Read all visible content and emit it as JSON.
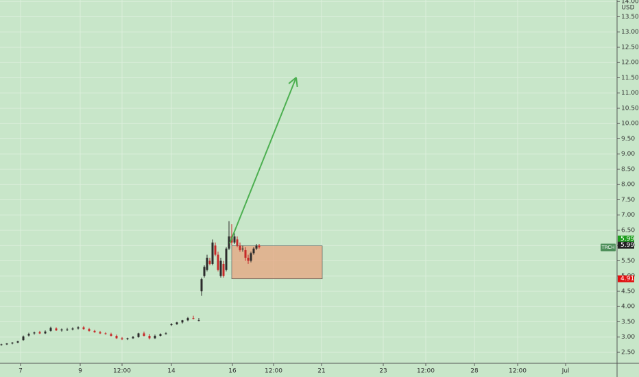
{
  "chart_data": {
    "type": "candlestick",
    "currency": "USD",
    "symbol": "TRCH",
    "xlim": [
      0,
      225
    ],
    "ylim": [
      2.14,
      14.05
    ],
    "grid": true,
    "up_color": "#2b2b2b",
    "down_color": "#c62828",
    "xticks": [
      {
        "value": 7.5,
        "label": "7"
      },
      {
        "value": 29.25,
        "label": "9"
      },
      {
        "value": 44.5,
        "label": "12:00"
      },
      {
        "value": 62.5,
        "label": "14"
      },
      {
        "value": 84.75,
        "label": "16"
      },
      {
        "value": 99.75,
        "label": "12:00"
      },
      {
        "value": 117.25,
        "label": "21"
      },
      {
        "value": 139.75,
        "label": "23"
      },
      {
        "value": 155.25,
        "label": "12:00"
      },
      {
        "value": 173,
        "label": "28"
      },
      {
        "value": 188.75,
        "label": "12:00"
      },
      {
        "value": 206.25,
        "label": "Jul"
      }
    ],
    "yticks": [
      {
        "value": 2.5,
        "label": "2.50"
      },
      {
        "value": 3,
        "label": "3.00"
      },
      {
        "value": 3.5,
        "label": "3.50"
      },
      {
        "value": 4,
        "label": "4.00"
      },
      {
        "value": 4.5,
        "label": "4.50"
      },
      {
        "value": 5,
        "label": "5.00"
      },
      {
        "value": 5.5,
        "label": "5.50"
      },
      {
        "value": 6,
        "label": "6.00"
      },
      {
        "value": 6.5,
        "label": "6.50"
      },
      {
        "value": 7,
        "label": "7.00"
      },
      {
        "value": 7.5,
        "label": "7.50"
      },
      {
        "value": 8,
        "label": "8.00"
      },
      {
        "value": 8.5,
        "label": "8.50"
      },
      {
        "value": 9,
        "label": "9.00"
      },
      {
        "value": 9.5,
        "label": "9.50"
      },
      {
        "value": 10,
        "label": "10.00"
      },
      {
        "value": 10.5,
        "label": "10.50"
      },
      {
        "value": 11,
        "label": "11.00"
      },
      {
        "value": 11.5,
        "label": "11.50"
      },
      {
        "value": 12,
        "label": "12.00"
      },
      {
        "value": 12.5,
        "label": "12.50"
      },
      {
        "value": 13,
        "label": "13.00"
      },
      {
        "value": 13.5,
        "label": "13.50"
      },
      {
        "value": 14,
        "label": "14.00"
      }
    ],
    "x": [
      0.5,
      2.5,
      4.5,
      6.5,
      8.5,
      10.5,
      12.5,
      14.5,
      16.5,
      18.5,
      20.5,
      22.5,
      24.5,
      26.5,
      28.5,
      30.5,
      32.5,
      34.5,
      36.5,
      38.5,
      40.5,
      42.5,
      44.5,
      46.5,
      48.5,
      50.5,
      52.5,
      54.5,
      56.5,
      58.5,
      60.5,
      62.5,
      64.5,
      66.5,
      68.5,
      70.5,
      72.5,
      73.5,
      74.5,
      75.5,
      76.5,
      77.5,
      78.5,
      79.5,
      80.5,
      81.5,
      82.5,
      83.5,
      84.5,
      85.5,
      86.5,
      87.5,
      88.5,
      89.5,
      90.5,
      91.5,
      92.5,
      93.5,
      94.5
    ],
    "open": [
      2.74,
      2.76,
      2.79,
      2.82,
      2.9,
      3.05,
      3.12,
      3.16,
      3.12,
      3.2,
      3.28,
      3.22,
      3.24,
      3.25,
      3.28,
      3.32,
      3.26,
      3.2,
      3.16,
      3.12,
      3.1,
      3.04,
      2.96,
      2.93,
      2.96,
      3.0,
      3.12,
      3.04,
      2.96,
      3.04,
      3.1,
      3.4,
      3.42,
      3.48,
      3.55,
      3.62,
      3.55,
      4.5,
      5.0,
      5.2,
      5.5,
      5.4,
      6.0,
      5.7,
      5.0,
      5.4,
      5.2,
      5.9,
      6.3,
      6.1,
      6.2,
      6.0,
      5.9,
      5.85,
      5.6,
      5.5,
      5.75,
      5.9,
      6.0
    ],
    "high": [
      2.78,
      2.8,
      2.83,
      2.88,
      3.05,
      3.14,
      3.18,
      3.2,
      3.22,
      3.34,
      3.32,
      3.28,
      3.3,
      3.32,
      3.35,
      3.36,
      3.3,
      3.24,
      3.2,
      3.16,
      3.14,
      3.08,
      3.0,
      2.98,
      3.04,
      3.14,
      3.18,
      3.1,
      3.08,
      3.12,
      3.16,
      3.46,
      3.5,
      3.56,
      3.66,
      3.7,
      3.62,
      4.95,
      5.35,
      5.7,
      5.6,
      6.2,
      6.1,
      5.8,
      5.6,
      5.5,
      5.95,
      6.8,
      6.7,
      6.4,
      6.3,
      6.1,
      6.0,
      5.95,
      5.7,
      5.8,
      5.95,
      6.05,
      6.05
    ],
    "low": [
      2.72,
      2.74,
      2.76,
      2.8,
      2.88,
      3.02,
      3.08,
      3.1,
      3.1,
      3.18,
      3.2,
      3.18,
      3.2,
      3.22,
      3.25,
      3.24,
      3.18,
      3.14,
      3.1,
      3.08,
      3.02,
      2.94,
      2.9,
      2.9,
      2.94,
      2.98,
      3.02,
      2.92,
      2.94,
      3.02,
      3.08,
      3.36,
      3.4,
      3.44,
      3.52,
      3.58,
      3.52,
      4.35,
      4.95,
      5.15,
      5.35,
      5.35,
      5.65,
      5.15,
      4.95,
      4.95,
      5.15,
      5.85,
      6.0,
      6.05,
      5.95,
      5.8,
      5.8,
      5.5,
      5.4,
      5.45,
      5.7,
      5.85,
      5.9
    ],
    "close": [
      2.76,
      2.79,
      2.82,
      2.86,
      3.02,
      3.1,
      3.15,
      3.12,
      3.18,
      3.3,
      3.22,
      3.25,
      3.25,
      3.28,
      3.32,
      3.26,
      3.2,
      3.16,
      3.12,
      3.1,
      3.04,
      2.96,
      2.93,
      2.96,
      3.0,
      3.12,
      3.04,
      2.96,
      3.04,
      3.1,
      3.12,
      3.42,
      3.48,
      3.55,
      3.62,
      3.6,
      3.55,
      4.9,
      5.3,
      5.6,
      5.4,
      6.1,
      5.7,
      5.2,
      5.5,
      5.0,
      5.9,
      6.3,
      6.1,
      6.3,
      6.0,
      5.85,
      5.9,
      5.6,
      5.5,
      5.75,
      5.9,
      6.0,
      5.95
    ],
    "arrow": {
      "x": [
        83.75,
        108
      ],
      "y": [
        6.07,
        11.51
      ],
      "color": "#4caf50"
    },
    "zone": {
      "x": [
        84.5,
        117.5
      ],
      "y": [
        4.91,
        5.99
      ],
      "color": "#e8a07a"
    },
    "price_labels": [
      {
        "value": 5.99,
        "color": "#1e9e1e"
      },
      {
        "value": 5.99,
        "color": "#222222"
      },
      {
        "value": 4.91,
        "color": "#e01010"
      }
    ]
  }
}
